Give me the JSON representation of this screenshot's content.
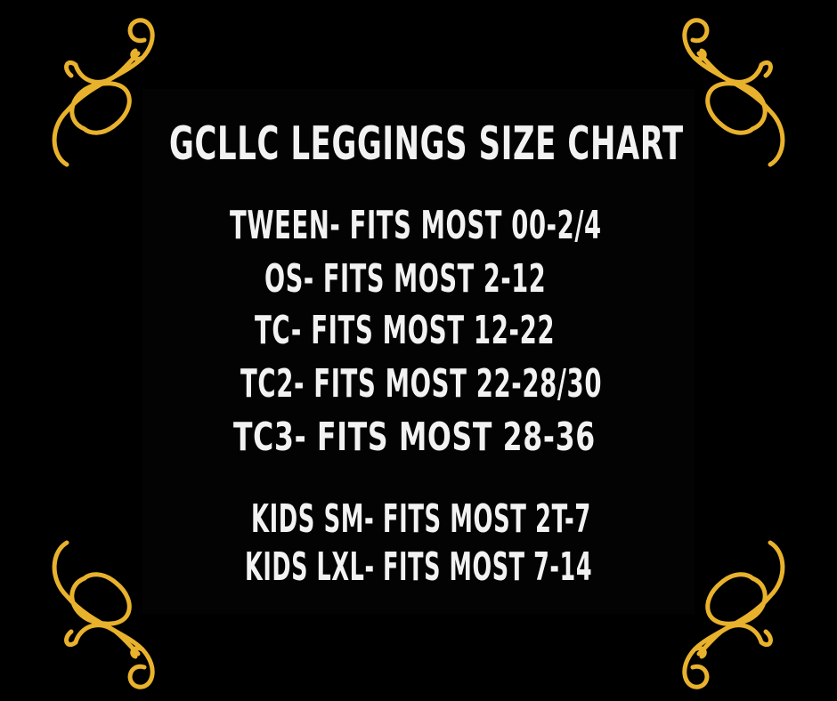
{
  "title": "GCLLC LEGGINGS SIZE CHART",
  "sizes": [
    "TWEEN- FITS MOST 00-2/4",
    "OS- FITS MOST 2-12",
    "TC- FITS MOST 12-22",
    "TC2- FITS MOST 22-28/30",
    "TC3- FITS MOST 28-36"
  ],
  "kids_sizes": [
    "KIDS SM- FITS MOST 2T-7",
    "KIDS LXL- FITS MOST 7-14"
  ],
  "colors": {
    "background": "#000000",
    "text": "#f2f2f2",
    "ornament": "#e9b22c"
  },
  "ornament_icon": "gold-flourish-corner"
}
